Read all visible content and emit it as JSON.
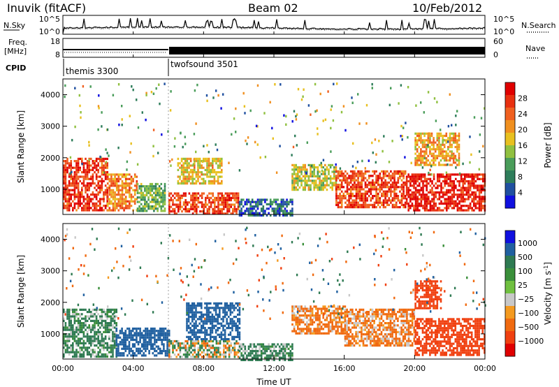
{
  "header": {
    "station": "Inuvik (fitACF)",
    "beam": "Beam 02",
    "date": "10/Feb/2012"
  },
  "panels": {
    "noise": {
      "left_label": "N.Sky",
      "left_ticks": [
        "10^5",
        "10^0"
      ],
      "right_label": "N.Search",
      "right_ticks": [
        "10^5",
        "10^0"
      ]
    },
    "freq": {
      "left_label_1": "Freq.",
      "left_label_2": "[MHz]",
      "left_ticks": [
        "18",
        "8"
      ],
      "right_label": "Nave",
      "right_ticks": [
        "60",
        "0"
      ]
    },
    "cpid": {
      "label": "CPID",
      "programs": [
        {
          "name": "themis 3300",
          "start_hour": 0
        },
        {
          "name": "twofsound 3501",
          "start_hour": 6
        }
      ]
    }
  },
  "colors": {
    "power": [
      "#1010e0",
      "#2050a0",
      "#2e7d5a",
      "#4a9d5a",
      "#90c040",
      "#e8c020",
      "#f09020",
      "#f06020",
      "#e83010",
      "#e00000"
    ],
    "velocity": [
      "#e00000",
      "#f04010",
      "#f06a10",
      "#f49a20",
      "#c8c8c8",
      "#70c040",
      "#3a8f3a",
      "#2e7a52",
      "#2060a0",
      "#1010e0"
    ]
  },
  "chart_data": [
    {
      "type": "heatmap",
      "title": "",
      "xlabel": "Time UT",
      "ylabel": "Slant Range [km]",
      "x_ticks": [
        "00:00",
        "04:00",
        "08:00",
        "12:00",
        "16:00",
        "20:00",
        "00:00"
      ],
      "x_range_hours": [
        0,
        24
      ],
      "y_ticks": [
        1000,
        2000,
        3000,
        4000
      ],
      "ylim": [
        200,
        4500
      ],
      "colorbar": {
        "label": "Power [dB]",
        "ticks": [
          4,
          8,
          12,
          16,
          20,
          24,
          28
        ],
        "range": [
          0,
          32
        ]
      },
      "regions": [
        {
          "t": [
            0,
            2.5
          ],
          "range_km": [
            300,
            2000
          ],
          "level": 27
        },
        {
          "t": [
            2.5,
            4.2
          ],
          "range_km": [
            300,
            1500
          ],
          "level": 22
        },
        {
          "t": [
            4.2,
            5.8
          ],
          "range_km": [
            300,
            1200
          ],
          "level": 12
        },
        {
          "t": [
            6,
            10
          ],
          "range_km": [
            200,
            900
          ],
          "level": 26
        },
        {
          "t": [
            6.5,
            9
          ],
          "range_km": [
            1200,
            2000
          ],
          "level": 18
        },
        {
          "t": [
            10,
            13
          ],
          "range_km": [
            200,
            700
          ],
          "level": 6
        },
        {
          "t": [
            13,
            15.5
          ],
          "range_km": [
            1000,
            1800
          ],
          "level": 16
        },
        {
          "t": [
            15.5,
            19.5
          ],
          "range_km": [
            400,
            1600
          ],
          "level": 26
        },
        {
          "t": [
            19.5,
            24
          ],
          "range_km": [
            300,
            1500
          ],
          "level": 29
        },
        {
          "t": [
            20,
            22.5
          ],
          "range_km": [
            1800,
            2800
          ],
          "level": 20
        }
      ]
    },
    {
      "type": "heatmap",
      "title": "",
      "xlabel": "Time UT",
      "ylabel": "Slant Range [km]",
      "x_ticks": [
        "00:00",
        "04:00",
        "08:00",
        "12:00",
        "16:00",
        "20:00",
        "00:00"
      ],
      "x_range_hours": [
        0,
        24
      ],
      "y_ticks": [
        1000,
        2000,
        3000,
        4000
      ],
      "ylim": [
        200,
        4500
      ],
      "colorbar": {
        "label": "Velocity [m s^-1]",
        "ticks": [
          1000,
          500,
          100,
          25,
          -25,
          -100,
          -500,
          -1000
        ]
      },
      "regions": [
        {
          "t": [
            0,
            3
          ],
          "range_km": [
            300,
            1800
          ],
          "velocity": 100
        },
        {
          "t": [
            3,
            6
          ],
          "range_km": [
            300,
            1200
          ],
          "velocity": 500
        },
        {
          "t": [
            6,
            10
          ],
          "range_km": [
            300,
            800
          ],
          "velocity": 0
        },
        {
          "t": [
            7,
            10
          ],
          "range_km": [
            800,
            2000
          ],
          "velocity": 500
        },
        {
          "t": [
            10,
            13
          ],
          "range_km": [
            200,
            700
          ],
          "velocity": 100
        },
        {
          "t": [
            13,
            16
          ],
          "range_km": [
            1000,
            1900
          ],
          "velocity": -100
        },
        {
          "t": [
            16,
            20
          ],
          "range_km": [
            600,
            1800
          ],
          "velocity": -100
        },
        {
          "t": [
            20,
            24
          ],
          "range_km": [
            300,
            1500
          ],
          "velocity": -500
        },
        {
          "t": [
            20,
            21.5
          ],
          "range_km": [
            1800,
            2700
          ],
          "velocity": -500
        }
      ]
    }
  ],
  "colorbar_text": {
    "power_label": "Power [dB]",
    "power_ticks": [
      "28",
      "24",
      "20",
      "16",
      "12",
      "8",
      "4"
    ],
    "velocity_label_1": "Velocity  [m s",
    "velocity_label_sup": "-1",
    "velocity_label_2": "]",
    "velocity_ticks": [
      "1000",
      "500",
      "100",
      "25",
      "−25",
      "−100",
      "−500",
      "−1000"
    ]
  },
  "axes_text": {
    "ylabel": "Slant Range [km]",
    "xlabel": "Time UT",
    "x_ticks": [
      "00:00",
      "04:00",
      "08:00",
      "12:00",
      "16:00",
      "20:00",
      "00:00"
    ],
    "y_ticks": [
      "1000",
      "2000",
      "3000",
      "4000"
    ]
  }
}
